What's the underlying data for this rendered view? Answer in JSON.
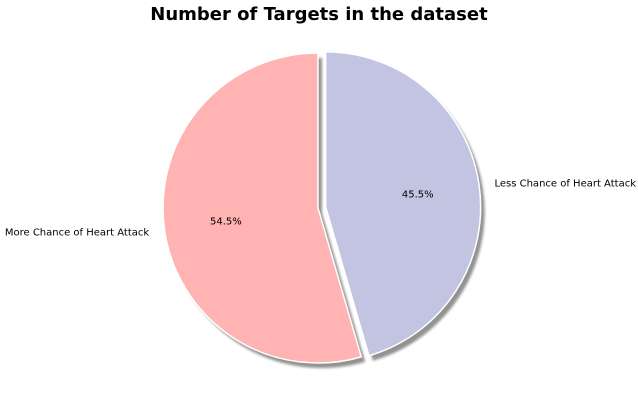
{
  "chart_data": {
    "type": "pie",
    "title": "Number of Targets in the dataset",
    "labels": [
      "More Chance of Heart Attack",
      "Less Chance of Heart Attack"
    ],
    "values": [
      54.5,
      45.5
    ],
    "percent_labels": [
      "54.5%",
      "45.5%"
    ],
    "colors": [
      "#ffb3b3",
      "#c3c4e2"
    ],
    "explode": [
      0,
      0.05
    ],
    "shadow": true,
    "start_angle_deg": 90
  }
}
